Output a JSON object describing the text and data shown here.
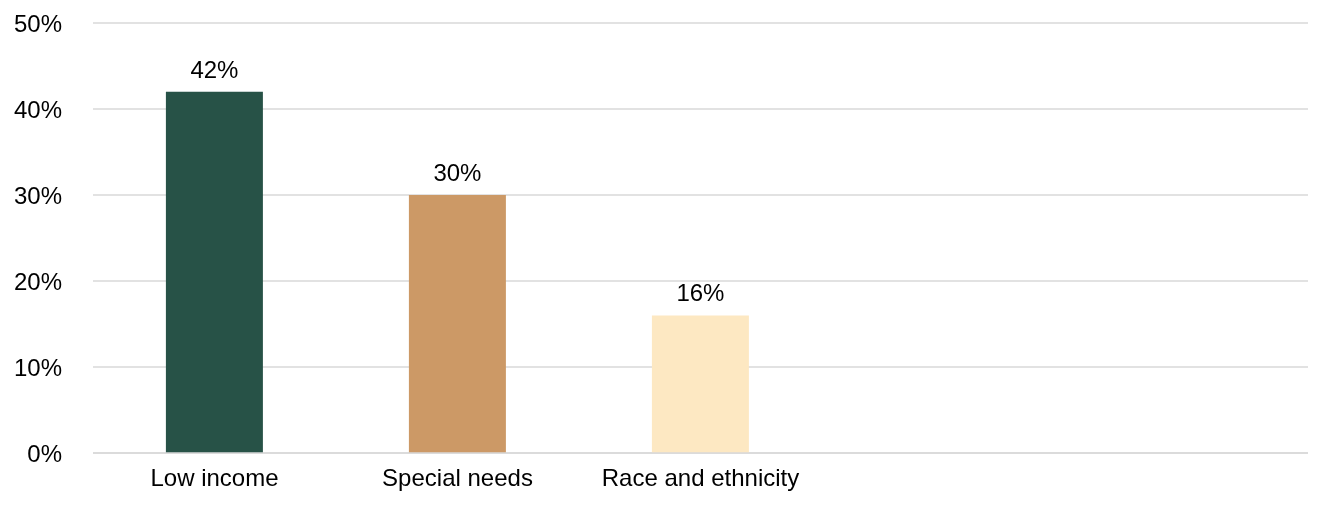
{
  "chart_data": {
    "type": "bar",
    "categories": [
      "Low income",
      "Special needs",
      "Race and ethnicity",
      null,
      null
    ],
    "values": [
      42,
      30,
      16,
      null,
      null
    ],
    "colors": [
      "#275247",
      "#cc9966",
      "#fde8c2",
      "#cccccc",
      "#cccccc"
    ],
    "value_labels": [
      "42%",
      "30%",
      "16%",
      null,
      null
    ],
    "ylim": [
      0,
      50
    ],
    "yticks": [
      {
        "value": 0,
        "label": "0%"
      },
      {
        "value": 10,
        "label": "10%"
      },
      {
        "value": 20,
        "label": "20%"
      },
      {
        "value": 30,
        "label": "30%"
      },
      {
        "value": 40,
        "label": "40%"
      },
      {
        "value": 50,
        "label": "50%"
      }
    ],
    "grid": "y",
    "legend": false
  }
}
